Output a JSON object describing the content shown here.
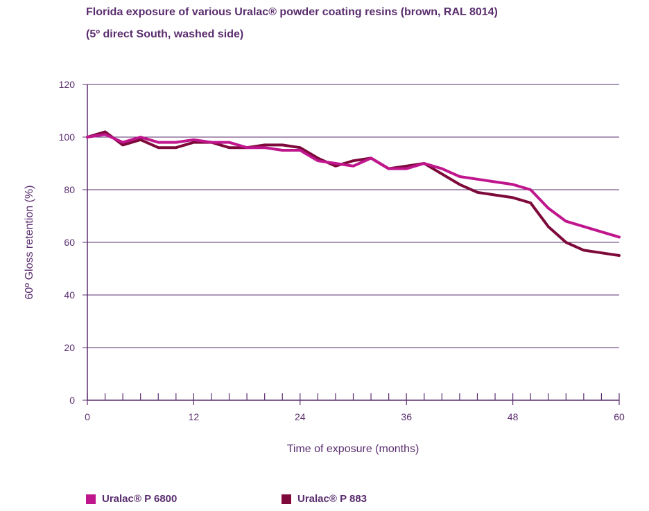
{
  "title_line1": "Florida exposure of various Uralac® powder coating resins (brown, RAL 8014)",
  "title_line2": "(5º direct South, washed side)",
  "chart_data": {
    "type": "line",
    "xlabel": "Time of exposure (months)",
    "ylabel": "60º Gloss retention (%)",
    "xlim": [
      0,
      60
    ],
    "ylim": [
      0,
      120
    ],
    "x_ticks": [
      0,
      12,
      24,
      36,
      48,
      60
    ],
    "y_ticks": [
      0,
      20,
      40,
      60,
      80,
      100,
      120
    ],
    "grid": "horizontal",
    "legend_position": "bottom",
    "series": [
      {
        "name": "Uralac® P 6800",
        "color": "#c0168d",
        "x": [
          0,
          2,
          4,
          6,
          8,
          10,
          12,
          14,
          16,
          18,
          20,
          22,
          24,
          26,
          28,
          30,
          32,
          34,
          36,
          38,
          40,
          42,
          44,
          46,
          48,
          50,
          52,
          54,
          56,
          58,
          60
        ],
        "y": [
          100,
          101,
          98,
          100,
          98,
          98,
          99,
          98,
          98,
          96,
          96,
          95,
          95,
          91,
          90,
          89,
          92,
          88,
          88,
          90,
          88,
          85,
          84,
          83,
          82,
          80,
          73,
          68,
          66,
          64,
          62
        ]
      },
      {
        "name": "Uralac® P 883",
        "color": "#7d0a3a",
        "x": [
          0,
          2,
          4,
          6,
          8,
          10,
          12,
          14,
          16,
          18,
          20,
          22,
          24,
          26,
          28,
          30,
          32,
          34,
          36,
          38,
          40,
          42,
          44,
          46,
          48,
          50,
          52,
          54,
          56,
          58,
          60
        ],
        "y": [
          100,
          102,
          97,
          99,
          96,
          96,
          98,
          98,
          96,
          96,
          97,
          97,
          96,
          92,
          89,
          91,
          92,
          88,
          89,
          90,
          86,
          82,
          79,
          78,
          77,
          75,
          66,
          60,
          57,
          56,
          55
        ]
      }
    ]
  }
}
